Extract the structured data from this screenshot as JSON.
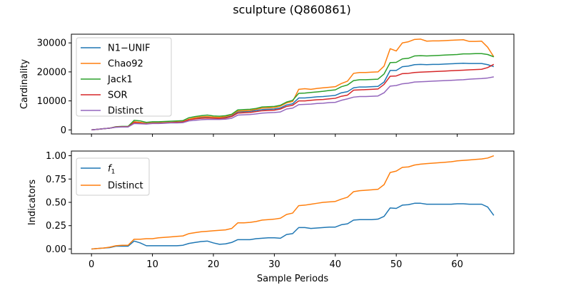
{
  "title": "sculpture (Q860861)",
  "chart_data": [
    {
      "type": "line",
      "ylabel": "Cardinality",
      "xlabel": "",
      "xlim": [
        -3.3,
        69.3
      ],
      "ylim": [
        -1400,
        33000
      ],
      "xticks": [
        0,
        10,
        20,
        30,
        40,
        50,
        60
      ],
      "yticks": [
        0,
        10000,
        20000,
        30000
      ],
      "ytick_labels": [
        "0",
        "10000",
        "20000",
        "30000"
      ],
      "legend_position": "upper-left",
      "x": [
        0,
        1,
        2,
        3,
        4,
        5,
        6,
        7,
        8,
        9,
        10,
        11,
        12,
        13,
        14,
        15,
        16,
        17,
        18,
        19,
        20,
        21,
        22,
        23,
        24,
        25,
        26,
        27,
        28,
        29,
        30,
        31,
        32,
        33,
        34,
        35,
        36,
        37,
        38,
        39,
        40,
        41,
        42,
        43,
        44,
        45,
        46,
        47,
        48,
        49,
        50,
        51,
        52,
        53,
        54,
        55,
        56,
        57,
        58,
        59,
        60,
        61,
        62,
        63,
        64,
        65,
        66
      ],
      "series": [
        {
          "name": "N1−UNIF",
          "color": "#1f77b4",
          "values": [
            0,
            200,
            400,
            600,
            1000,
            1100,
            1100,
            2800,
            2600,
            2200,
            2400,
            2400,
            2500,
            2600,
            2700,
            2800,
            3600,
            4000,
            4200,
            4300,
            4200,
            4100,
            4300,
            4800,
            6200,
            6300,
            6400,
            6700,
            7000,
            7100,
            7200,
            7600,
            8600,
            9000,
            11000,
            11000,
            11200,
            11400,
            11500,
            11700,
            11900,
            12800,
            13200,
            14500,
            14800,
            14800,
            14900,
            15000,
            16500,
            20500,
            20500,
            21800,
            22000,
            22500,
            22600,
            22500,
            22600,
            22600,
            22700,
            22800,
            22900,
            23000,
            22900,
            22900,
            22900,
            22500,
            21800
          ]
        },
        {
          "name": "Chao92",
          "color": "#ff7f0e",
          "values": [
            0,
            200,
            400,
            600,
            1000,
            1100,
            1100,
            2800,
            2600,
            2200,
            2400,
            2400,
            2500,
            2600,
            2700,
            2800,
            3700,
            4200,
            4500,
            4600,
            4400,
            4300,
            4600,
            5200,
            6500,
            6600,
            6700,
            7100,
            7500,
            7600,
            7700,
            8200,
            9300,
            9800,
            14000,
            14200,
            14000,
            14300,
            14500,
            14700,
            14900,
            16000,
            16800,
            19500,
            19800,
            19800,
            19900,
            20000,
            22000,
            28000,
            27200,
            30000,
            30400,
            31200,
            31300,
            30600,
            30700,
            30700,
            30800,
            30900,
            31000,
            31100,
            30500,
            30500,
            30600,
            28500,
            25200
          ]
        },
        {
          "name": "Jack1",
          "color": "#2ca02c",
          "values": [
            0,
            200,
            400,
            600,
            1100,
            1200,
            1200,
            3300,
            3100,
            2600,
            2800,
            2800,
            2900,
            3000,
            3100,
            3200,
            4200,
            4600,
            4900,
            5100,
            4800,
            4700,
            4900,
            5400,
            6900,
            7000,
            7100,
            7400,
            7900,
            8000,
            8100,
            8500,
            9600,
            10200,
            12600,
            12700,
            12900,
            13100,
            13300,
            13600,
            13800,
            14900,
            15500,
            17000,
            17300,
            17300,
            17400,
            17500,
            19300,
            23200,
            23300,
            24500,
            24700,
            25500,
            25600,
            25500,
            25600,
            25700,
            25800,
            25900,
            26000,
            26200,
            26200,
            26300,
            26300,
            26000,
            25200
          ]
        },
        {
          "name": "SOR",
          "color": "#d62728",
          "values": [
            0,
            200,
            400,
            600,
            1000,
            1100,
            1100,
            2500,
            2300,
            2100,
            2300,
            2300,
            2400,
            2500,
            2600,
            2700,
            3500,
            3800,
            4000,
            4100,
            4000,
            3900,
            4100,
            4600,
            5800,
            5900,
            6000,
            6300,
            6600,
            6700,
            6800,
            7200,
            8100,
            8500,
            10000,
            10000,
            10200,
            10400,
            10500,
            10700,
            10900,
            11600,
            12000,
            13700,
            13800,
            13900,
            14000,
            14100,
            15700,
            18500,
            18600,
            19400,
            19500,
            19800,
            19900,
            20000,
            20100,
            20200,
            20300,
            20400,
            20500,
            20600,
            20700,
            20800,
            20900,
            21500,
            22600
          ]
        },
        {
          "name": "Distinct",
          "color": "#9467bd",
          "values": [
            0,
            200,
            400,
            600,
            900,
            1000,
            1000,
            2200,
            2100,
            2000,
            2200,
            2200,
            2300,
            2400,
            2400,
            2500,
            3100,
            3300,
            3500,
            3600,
            3600,
            3600,
            3700,
            4000,
            5100,
            5200,
            5300,
            5500,
            5800,
            5900,
            6000,
            6200,
            7200,
            7500,
            8700,
            8800,
            8900,
            9100,
            9200,
            9400,
            9500,
            10200,
            10700,
            11300,
            11500,
            11500,
            11600,
            11700,
            12800,
            15100,
            15300,
            15900,
            16100,
            16500,
            16600,
            16700,
            16800,
            16900,
            17000,
            17100,
            17200,
            17300,
            17500,
            17600,
            17700,
            17900,
            18300
          ]
        }
      ]
    },
    {
      "type": "line",
      "ylabel": "Indicators",
      "xlabel": "Sample Periods",
      "xlim": [
        -3.3,
        69.3
      ],
      "ylim": [
        -0.05,
        1.05
      ],
      "xticks": [
        0,
        10,
        20,
        30,
        40,
        50,
        60
      ],
      "xtick_labels": [
        "0",
        "10",
        "20",
        "30",
        "40",
        "50",
        "60"
      ],
      "yticks": [
        0,
        0.25,
        0.5,
        0.75,
        1.0
      ],
      "ytick_labels": [
        "0.00",
        "0.25",
        "0.50",
        "0.75",
        "1.00"
      ],
      "legend_position": "upper-left",
      "x": [
        0,
        1,
        2,
        3,
        4,
        5,
        6,
        7,
        8,
        9,
        10,
        11,
        12,
        13,
        14,
        15,
        16,
        17,
        18,
        19,
        20,
        21,
        22,
        23,
        24,
        25,
        26,
        27,
        28,
        29,
        30,
        31,
        32,
        33,
        34,
        35,
        36,
        37,
        38,
        39,
        40,
        41,
        42,
        43,
        44,
        45,
        46,
        47,
        48,
        49,
        50,
        51,
        52,
        53,
        54,
        55,
        56,
        57,
        58,
        59,
        60,
        61,
        62,
        63,
        64,
        65,
        66
      ],
      "series": [
        {
          "name": "f1",
          "color": "#1f77b4",
          "values": [
            0,
            0.005,
            0.01,
            0.015,
            0.03,
            0.03,
            0.03,
            0.085,
            0.065,
            0.035,
            0.035,
            0.035,
            0.035,
            0.035,
            0.035,
            0.04,
            0.06,
            0.07,
            0.08,
            0.085,
            0.065,
            0.05,
            0.055,
            0.07,
            0.1,
            0.1,
            0.1,
            0.11,
            0.115,
            0.12,
            0.12,
            0.115,
            0.155,
            0.165,
            0.23,
            0.23,
            0.22,
            0.225,
            0.23,
            0.235,
            0.235,
            0.26,
            0.27,
            0.31,
            0.315,
            0.315,
            0.315,
            0.32,
            0.35,
            0.44,
            0.435,
            0.47,
            0.475,
            0.49,
            0.49,
            0.48,
            0.48,
            0.48,
            0.48,
            0.48,
            0.485,
            0.485,
            0.48,
            0.48,
            0.48,
            0.45,
            0.36
          ]
        },
        {
          "name": "Distinct",
          "color": "#ff7f0e",
          "values": [
            0,
            0.005,
            0.01,
            0.02,
            0.035,
            0.04,
            0.04,
            0.105,
            0.105,
            0.11,
            0.11,
            0.12,
            0.125,
            0.13,
            0.135,
            0.14,
            0.165,
            0.175,
            0.185,
            0.19,
            0.195,
            0.2,
            0.205,
            0.22,
            0.28,
            0.28,
            0.285,
            0.295,
            0.31,
            0.315,
            0.32,
            0.33,
            0.37,
            0.385,
            0.465,
            0.47,
            0.48,
            0.49,
            0.5,
            0.505,
            0.51,
            0.535,
            0.555,
            0.615,
            0.625,
            0.63,
            0.635,
            0.64,
            0.69,
            0.82,
            0.835,
            0.875,
            0.88,
            0.9,
            0.91,
            0.915,
            0.92,
            0.925,
            0.93,
            0.935,
            0.945,
            0.95,
            0.955,
            0.96,
            0.965,
            0.975,
            1.0
          ]
        }
      ]
    }
  ]
}
